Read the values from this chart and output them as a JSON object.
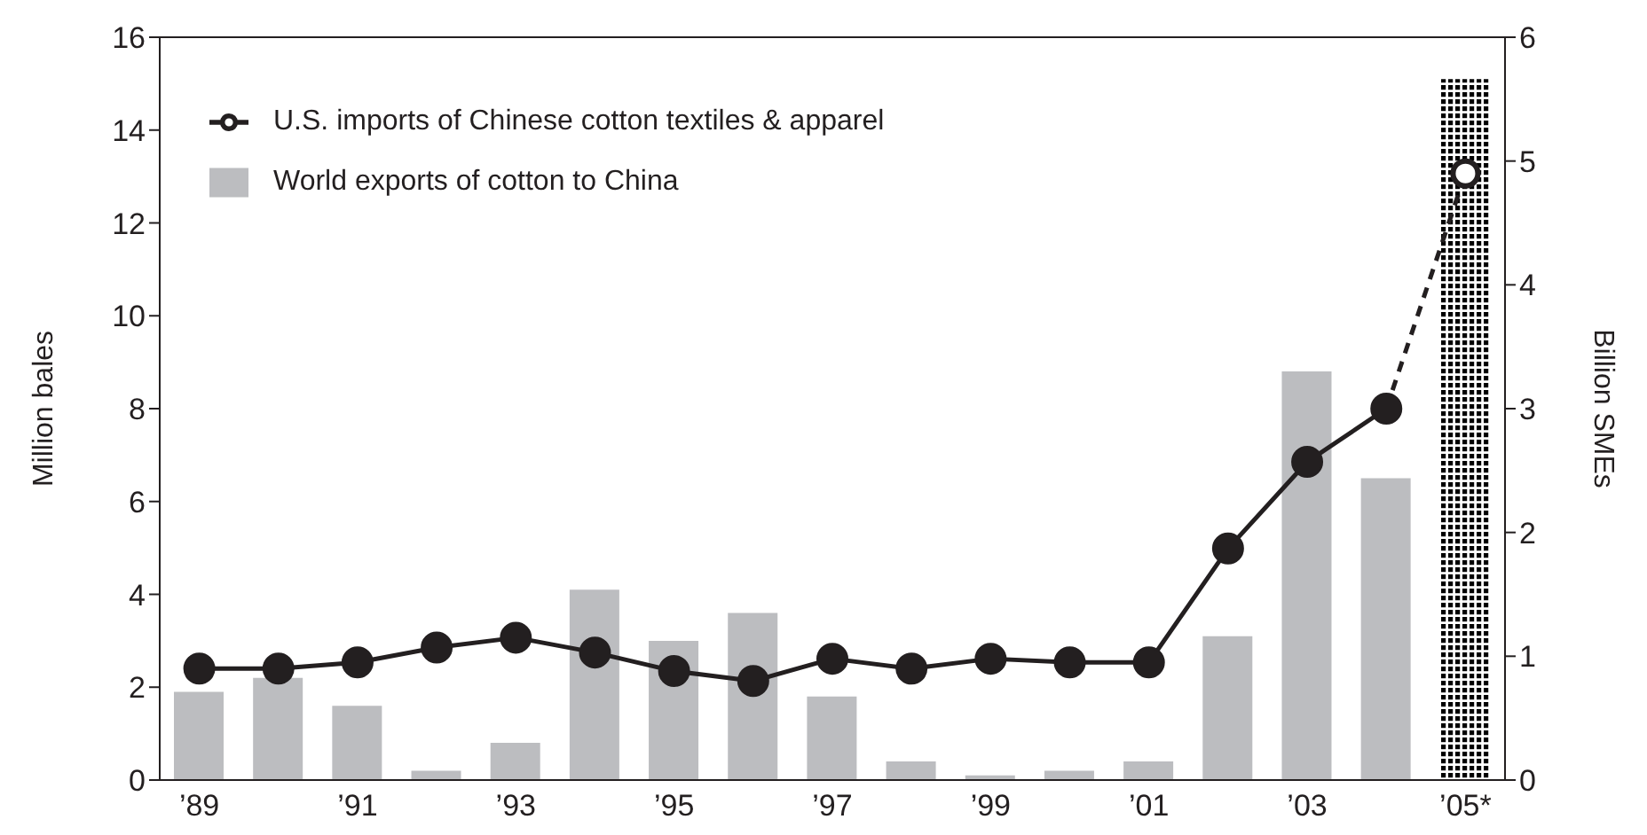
{
  "chart_data": {
    "type": "bar",
    "ylabel": "Million bales",
    "y2label": "Billion SMEs",
    "categories": [
      "’89",
      null,
      "’91",
      null,
      "’93",
      null,
      "’95",
      null,
      "’97",
      null,
      "’99",
      null,
      "’01",
      null,
      "’03",
      null,
      "’05*"
    ],
    "stacked": true,
    "series": [
      {
        "name": "World exports of cotton to China",
        "color": "#bcbdc0",
        "values": [
          1.9,
          2.2,
          1.6,
          0.2,
          0.8,
          4.1,
          3.0,
          3.6,
          1.8,
          0.4,
          0.1,
          0.2,
          0.4,
          3.1,
          8.8,
          6.5,
          null
        ]
      },
      {
        "color": "#000000",
        "values": [
          null,
          null,
          null,
          null,
          null,
          null,
          null,
          null,
          null,
          null,
          null,
          null,
          null,
          null,
          null,
          null,
          15.1
        ]
      },
      {
        "name": "U.S. imports of Chinese cotton textiles & apparel",
        "type": "line",
        "axis": "y2",
        "color": "#231f20",
        "marker": "circle",
        "line_style": "solid",
        "values": [
          0.9,
          0.9,
          0.95,
          1.07,
          1.15,
          1.03,
          0.88,
          0.8,
          0.98,
          0.9,
          0.98,
          0.95,
          0.95,
          1.87,
          2.57,
          3.0,
          null
        ]
      },
      {
        "type": "line",
        "axis": "y2",
        "color": "#231f20",
        "marker": "circle",
        "line_style": "dashed",
        "values": [
          null,
          null,
          null,
          null,
          null,
          null,
          null,
          null,
          null,
          null,
          null,
          null,
          null,
          null,
          null,
          3.0,
          4.9
        ]
      }
    ],
    "ylim": [
      0,
      16
    ],
    "yticks": [
      0,
      2,
      4,
      6,
      8,
      10,
      12,
      14,
      16
    ],
    "y2lim": [
      0,
      6
    ],
    "y2ticks": [
      0,
      1,
      2,
      3,
      4,
      5,
      6
    ],
    "grid": false,
    "legend": "top left"
  }
}
